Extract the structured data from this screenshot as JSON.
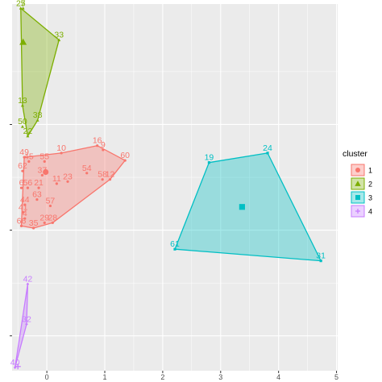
{
  "chart_data": {
    "type": "scatter",
    "title": "",
    "xlabel": "",
    "ylabel": "",
    "xlim": [
      -0.6,
      5.02
    ],
    "ylim": [
      -0.33,
      3.14
    ],
    "x_ticks": [
      0,
      1,
      2,
      3,
      4,
      5
    ],
    "x_tick_labels": [
      "0",
      "1",
      "2",
      "3",
      "4",
      "5"
    ],
    "y_ticks": [
      0,
      1,
      2
    ],
    "y_tick_labels": [
      "",
      "",
      ""
    ],
    "grid": true,
    "background": "#ebebeb",
    "legend": {
      "title": "cluster",
      "position": "right",
      "entries": [
        "1",
        "2",
        "3",
        "4"
      ]
    },
    "clusters": [
      {
        "id": "1",
        "color": "#f8766d",
        "shape": "circle",
        "center": [
          -0.02,
          1.55
        ],
        "hull": [
          "49",
          "10",
          "16",
          "60",
          "12",
          "28",
          "35",
          "66"
        ],
        "points": [
          {
            "label": "49",
            "x": -0.39,
            "y": 1.69
          },
          {
            "label": "45",
            "x": -0.31,
            "y": 1.65
          },
          {
            "label": "55",
            "x": -0.04,
            "y": 1.65
          },
          {
            "label": "10",
            "x": 0.25,
            "y": 1.73
          },
          {
            "label": "16",
            "x": 0.87,
            "y": 1.8
          },
          {
            "label": "9",
            "x": 0.97,
            "y": 1.76
          },
          {
            "label": "60",
            "x": 1.35,
            "y": 1.66
          },
          {
            "label": "62",
            "x": -0.42,
            "y": 1.56
          },
          {
            "label": "37",
            "x": -0.08,
            "y": 1.52
          },
          {
            "label": "54",
            "x": 0.69,
            "y": 1.54
          },
          {
            "label": "11",
            "x": 0.17,
            "y": 1.44
          },
          {
            "label": "23",
            "x": 0.36,
            "y": 1.46
          },
          {
            "label": "58",
            "x": 0.96,
            "y": 1.48
          },
          {
            "label": "12",
            "x": 1.09,
            "y": 1.48
          },
          {
            "label": "6",
            "x": -0.44,
            "y": 1.4
          },
          {
            "label": "56",
            "x": -0.33,
            "y": 1.4
          },
          {
            "label": "21",
            "x": -0.14,
            "y": 1.4
          },
          {
            "label": "63",
            "x": -0.17,
            "y": 1.29
          },
          {
            "label": "44",
            "x": -0.38,
            "y": 1.24
          },
          {
            "label": "57",
            "x": 0.06,
            "y": 1.23
          },
          {
            "label": "41",
            "x": -0.41,
            "y": 1.17
          },
          {
            "label": "4",
            "x": -0.38,
            "y": 1.11
          },
          {
            "label": "29",
            "x": -0.04,
            "y": 1.07
          },
          {
            "label": "28",
            "x": 0.1,
            "y": 1.07
          },
          {
            "label": "66",
            "x": -0.44,
            "y": 1.04
          },
          {
            "label": "35",
            "x": -0.23,
            "y": 1.02
          }
        ]
      },
      {
        "id": "2",
        "color": "#7cae00",
        "shape": "triangle",
        "center": [
          -0.41,
          2.78
        ],
        "hull": [
          "25",
          "33",
          "38",
          "22",
          "13"
        ],
        "points": [
          {
            "label": "25",
            "x": -0.45,
            "y": 3.1
          },
          {
            "label": "7",
            "x": -0.41,
            "y": 3.1
          },
          {
            "label": "33",
            "x": 0.21,
            "y": 2.8
          },
          {
            "label": "13",
            "x": -0.42,
            "y": 2.18
          },
          {
            "label": "38",
            "x": -0.16,
            "y": 2.04
          },
          {
            "label": "50",
            "x": -0.42,
            "y": 1.98
          },
          {
            "label": "22",
            "x": -0.33,
            "y": 1.89
          }
        ]
      },
      {
        "id": "3",
        "color": "#00bfc4",
        "shape": "square",
        "center": [
          3.37,
          1.22
        ],
        "hull": [
          "19",
          "24",
          "31",
          "61"
        ],
        "points": [
          {
            "label": "19",
            "x": 2.8,
            "y": 1.64
          },
          {
            "label": "24",
            "x": 3.81,
            "y": 1.73
          },
          {
            "label": "61",
            "x": 2.21,
            "y": 0.82
          },
          {
            "label": "31",
            "x": 4.73,
            "y": 0.71
          }
        ]
      },
      {
        "id": "4",
        "color": "#c77cff",
        "shape": "cross",
        "center": [
          -0.5,
          -0.29
        ],
        "hull": [
          "42",
          "32",
          "40"
        ],
        "points": [
          {
            "label": "42",
            "x": -0.33,
            "y": 0.49
          },
          {
            "label": "32",
            "x": -0.35,
            "y": 0.11
          },
          {
            "label": "40",
            "x": -0.55,
            "y": -0.3
          }
        ]
      }
    ]
  }
}
